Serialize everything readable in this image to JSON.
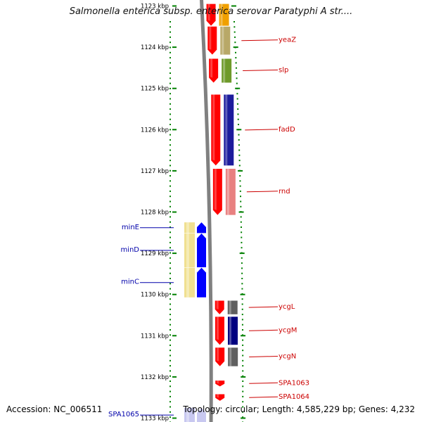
{
  "title": "Salmonella enterica subsp. enterica serovar Paratyphi A str....",
  "footer": {
    "accession": "Accession: NC_006511",
    "topology": "Topology: circular; Length: 4,585,229 bp; Genes: 4,232"
  },
  "axis": {
    "unit": "kbp",
    "ticks": [
      {
        "kbp": 1123,
        "label": "1123 kbp"
      },
      {
        "kbp": 1124,
        "label": "1124 kbp"
      },
      {
        "kbp": 1125,
        "label": "1125 kbp"
      },
      {
        "kbp": 1126,
        "label": "1126 kbp"
      },
      {
        "kbp": 1127,
        "label": "1127 kbp"
      },
      {
        "kbp": 1128,
        "label": "1128 kbp"
      },
      {
        "kbp": 1129,
        "label": "1129 kbp"
      },
      {
        "kbp": 1130,
        "label": "1130 kbp"
      },
      {
        "kbp": 1131,
        "label": "1131 kbp"
      },
      {
        "kbp": 1132,
        "label": "1132 kbp"
      },
      {
        "kbp": 1133,
        "label": "1133 kbp"
      }
    ]
  },
  "colors": {
    "forward_label": "#cc0000",
    "reverse_label": "#0000aa",
    "forward_gene": "#ff0000",
    "reverse_gene": "#0000ff",
    "backbone": "#808080",
    "tick": "#008000"
  },
  "genes": [
    {
      "name": "",
      "strand": "+",
      "start_kbp": 1122.95,
      "end_kbp": 1123.48,
      "category_color": "#f0a000"
    },
    {
      "name": "yeaZ",
      "strand": "+",
      "start_kbp": 1123.5,
      "end_kbp": 1124.18,
      "category_color": "#b8a868"
    },
    {
      "name": "slp",
      "strand": "+",
      "start_kbp": 1124.28,
      "end_kbp": 1124.86,
      "category_color": "#6e9a2a"
    },
    {
      "name": "fadD",
      "strand": "+",
      "start_kbp": 1125.15,
      "end_kbp": 1126.87,
      "category_color": "#1c1c9c"
    },
    {
      "name": "rnd",
      "strand": "+",
      "start_kbp": 1126.95,
      "end_kbp": 1128.07,
      "category_color": "#e88080"
    },
    {
      "name": "minE",
      "strand": "-",
      "start_kbp": 1128.25,
      "end_kbp": 1128.51,
      "category_color": "#f0e090"
    },
    {
      "name": "minD",
      "strand": "-",
      "start_kbp": 1128.52,
      "end_kbp": 1129.34,
      "category_color": "#f0e090"
    },
    {
      "name": "minC",
      "strand": "-",
      "start_kbp": 1129.35,
      "end_kbp": 1130.07,
      "category_color": "#f0e090"
    },
    {
      "name": "ycgL",
      "strand": "+",
      "start_kbp": 1130.15,
      "end_kbp": 1130.48,
      "category_color": "#606060"
    },
    {
      "name": "ycgM",
      "strand": "+",
      "start_kbp": 1130.54,
      "end_kbp": 1131.22,
      "category_color": "#000080"
    },
    {
      "name": "ycgN",
      "strand": "+",
      "start_kbp": 1131.29,
      "end_kbp": 1131.74,
      "category_color": "#606060"
    },
    {
      "name": "SPA1063",
      "strand": "+",
      "start_kbp": 1132.09,
      "end_kbp": 1132.23,
      "category_color": null
    },
    {
      "name": "SPA1064",
      "strand": "+",
      "start_kbp": 1132.42,
      "end_kbp": 1132.58,
      "category_color": null
    },
    {
      "name": "SPA1065",
      "strand": "-",
      "start_kbp": 1132.75,
      "end_kbp": 1133.1,
      "category_color": "#c8c8f0"
    }
  ]
}
